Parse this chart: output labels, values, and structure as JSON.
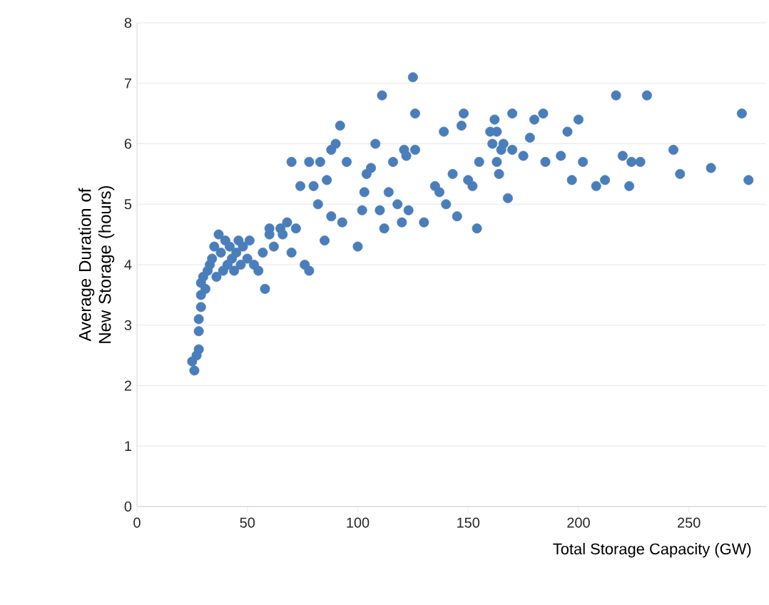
{
  "chart_data": {
    "type": "scatter",
    "xlabel": "Total Storage Capacity (GW)",
    "ylabel": "Average Duration of New Storage (hours)",
    "xlim": [
      0,
      285
    ],
    "ylim": [
      0,
      8
    ],
    "xticks": [
      0,
      50,
      100,
      150,
      200,
      250
    ],
    "yticks": [
      0,
      1,
      2,
      3,
      4,
      5,
      6,
      7,
      8
    ],
    "grid": "y",
    "marker": "circle",
    "series": [
      {
        "color": "#4a7ebb",
        "x": [
          25,
          26,
          27,
          28,
          28,
          28,
          29,
          29,
          29,
          30,
          31,
          32,
          33,
          34,
          35,
          36,
          37,
          38,
          39,
          40,
          41,
          42,
          43,
          44,
          45,
          46,
          47,
          48,
          50,
          51,
          53,
          55,
          57,
          58,
          60,
          60,
          62,
          65,
          66,
          68,
          70,
          70,
          72,
          74,
          76,
          78,
          78,
          80,
          82,
          83,
          85,
          86,
          88,
          88,
          90,
          92,
          93,
          95,
          100,
          102,
          103,
          104,
          106,
          108,
          110,
          111,
          112,
          114,
          116,
          118,
          120,
          121,
          122,
          123,
          125,
          126,
          126,
          130,
          135,
          137,
          139,
          140,
          143,
          145,
          147,
          148,
          150,
          152,
          154,
          155,
          160,
          161,
          162,
          163,
          163,
          164,
          165,
          166,
          168,
          170,
          170,
          175,
          178,
          180,
          184,
          185,
          192,
          195,
          197,
          200,
          202,
          208,
          212,
          217,
          220,
          223,
          224,
          228,
          231,
          243,
          246,
          260,
          274,
          277
        ],
        "values": [
          2.4,
          2.25,
          2.5,
          2.6,
          2.9,
          3.1,
          3.3,
          3.5,
          3.7,
          3.8,
          3.6,
          3.9,
          4.0,
          4.1,
          4.3,
          3.8,
          4.5,
          4.2,
          3.9,
          4.4,
          4.0,
          4.3,
          4.1,
          3.9,
          4.2,
          4.4,
          4.0,
          4.3,
          4.1,
          4.4,
          4.0,
          3.9,
          4.2,
          3.6,
          4.6,
          4.5,
          4.3,
          4.6,
          4.5,
          4.7,
          5.7,
          4.2,
          4.6,
          5.3,
          4.0,
          5.7,
          3.9,
          5.3,
          5.0,
          5.7,
          4.4,
          5.4,
          5.9,
          4.8,
          6.0,
          6.3,
          4.7,
          5.7,
          4.3,
          4.9,
          5.2,
          5.5,
          5.6,
          6.0,
          4.9,
          6.8,
          4.6,
          5.2,
          5.7,
          5.0,
          4.7,
          5.9,
          5.8,
          4.9,
          7.1,
          6.5,
          5.9,
          4.7,
          5.3,
          5.2,
          6.2,
          5.0,
          5.5,
          4.8,
          6.3,
          6.5,
          5.4,
          5.3,
          4.6,
          5.7,
          6.2,
          6.0,
          6.4,
          5.7,
          6.2,
          5.5,
          5.9,
          6.0,
          5.1,
          6.5,
          5.9,
          5.8,
          6.1,
          6.4,
          6.5,
          5.7,
          5.8,
          6.2,
          5.4,
          6.4,
          5.7,
          5.3,
          5.4,
          6.8,
          5.8,
          5.3,
          5.7,
          5.7,
          6.8,
          5.9,
          5.5,
          5.6,
          6.5,
          5.4
        ]
      }
    ]
  }
}
